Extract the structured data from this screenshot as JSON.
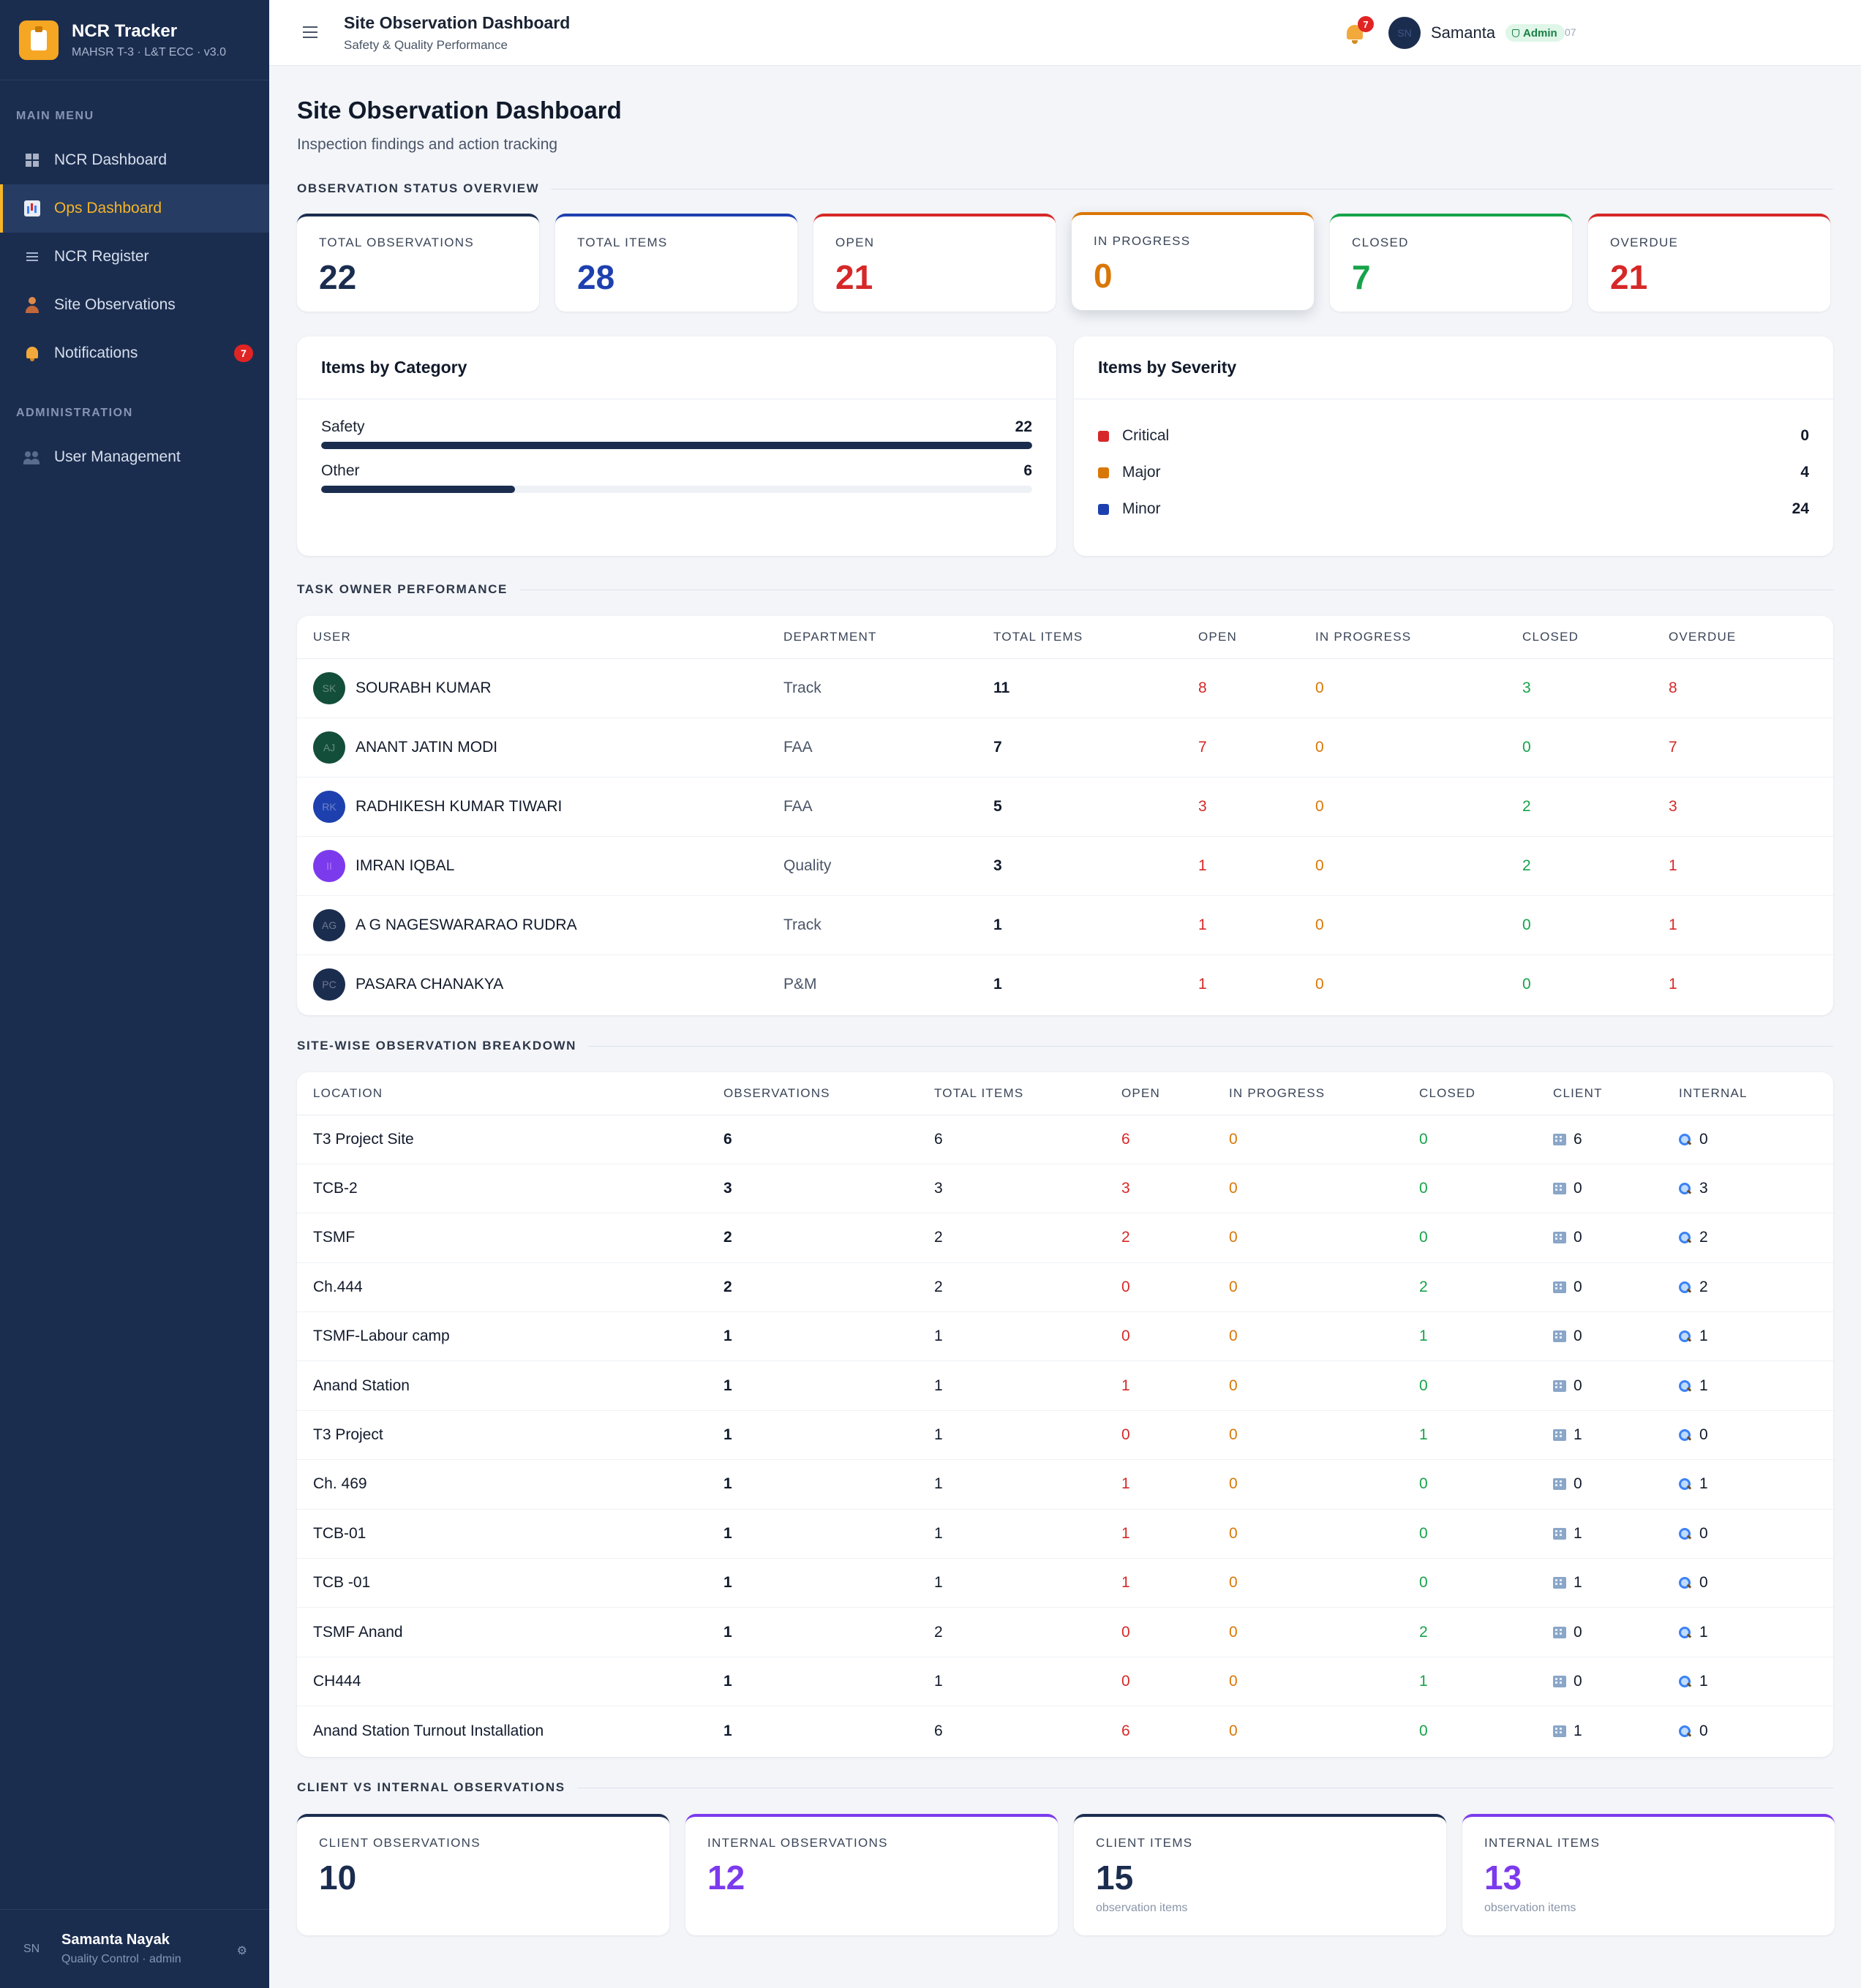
{
  "brand": {
    "title": "NCR Tracker",
    "subtitle": "MAHSR T-3 · L&T ECC · v3.0"
  },
  "sidebar": {
    "main_menu_label": "MAIN MENU",
    "items": [
      {
        "label": "NCR Dashboard",
        "icon": "grid-icon"
      },
      {
        "label": "Ops Dashboard",
        "icon": "bar-chart-icon",
        "active": true
      },
      {
        "label": "NCR Register",
        "icon": "list-icon"
      },
      {
        "label": "Site Observations",
        "icon": "person-icon"
      },
      {
        "label": "Notifications",
        "icon": "bell-icon",
        "badge": "7"
      }
    ],
    "admin_label": "ADMINISTRATION",
    "admin_items": [
      {
        "label": "User Management",
        "icon": "users-icon"
      }
    ],
    "user": {
      "initials": "SN",
      "name": "Samanta Nayak",
      "role": "Quality Control · admin"
    }
  },
  "header": {
    "title": "Site Observation Dashboard",
    "subtitle": "Safety & Quality Performance",
    "version": "v2026.05.02.07",
    "notification_count": "7",
    "user_initials": "SN",
    "user_name": "Samanta",
    "role_badge": "Admin"
  },
  "page": {
    "title": "Site Observation Dashboard",
    "subtitle": "Inspection findings and action tracking"
  },
  "status_overview": {
    "label": "OBSERVATION STATUS OVERVIEW",
    "cards": [
      {
        "label": "TOTAL OBSERVATIONS",
        "value": "22",
        "color": "#1b2d4f"
      },
      {
        "label": "TOTAL ITEMS",
        "value": "28",
        "color": "#1e40af"
      },
      {
        "label": "OPEN",
        "value": "21",
        "color": "#d62828"
      },
      {
        "label": "IN PROGRESS",
        "value": "0",
        "color": "#d97706"
      },
      {
        "label": "CLOSED",
        "value": "7",
        "color": "#16a34a"
      },
      {
        "label": "OVERDUE",
        "value": "21",
        "color": "#d62828"
      }
    ]
  },
  "category": {
    "title": "Items by Category",
    "max": 22,
    "rows": [
      {
        "label": "Safety",
        "value": 22
      },
      {
        "label": "Other",
        "value": 6
      }
    ]
  },
  "severity": {
    "title": "Items by Severity",
    "rows": [
      {
        "label": "Critical",
        "value": "0",
        "color": "#d62828"
      },
      {
        "label": "Major",
        "value": "4",
        "color": "#d97706"
      },
      {
        "label": "Minor",
        "value": "24",
        "color": "#1e40af"
      }
    ]
  },
  "task_owner": {
    "label": "TASK OWNER PERFORMANCE",
    "columns": [
      "USER",
      "DEPARTMENT",
      "TOTAL ITEMS",
      "OPEN",
      "IN PROGRESS",
      "CLOSED",
      "OVERDUE"
    ],
    "rows": [
      {
        "initials": "SK",
        "avatar_color": "#134e3a",
        "name": "SOURABH KUMAR",
        "department": "Track",
        "total": "11",
        "open": "8",
        "in_progress": "0",
        "closed": "3",
        "overdue": "8"
      },
      {
        "initials": "AJ",
        "avatar_color": "#134e3a",
        "name": "ANANT JATIN MODI",
        "department": "FAA",
        "total": "7",
        "open": "7",
        "in_progress": "0",
        "closed": "0",
        "overdue": "7"
      },
      {
        "initials": "RK",
        "avatar_color": "#1e40af",
        "name": "RADHIKESH KUMAR TIWARI",
        "department": "FAA",
        "total": "5",
        "open": "3",
        "in_progress": "0",
        "closed": "2",
        "overdue": "3"
      },
      {
        "initials": "II",
        "avatar_color": "#7c3aed",
        "name": "IMRAN IQBAL",
        "department": "Quality",
        "total": "3",
        "open": "1",
        "in_progress": "0",
        "closed": "2",
        "overdue": "1"
      },
      {
        "initials": "AG",
        "avatar_color": "#1b2d4f",
        "name": "A G NAGESWARARAO RUDRA",
        "department": "Track",
        "total": "1",
        "open": "1",
        "in_progress": "0",
        "closed": "0",
        "overdue": "1"
      },
      {
        "initials": "PC",
        "avatar_color": "#1b2d4f",
        "name": "PASARA CHANAKYA",
        "department": "P&M",
        "total": "1",
        "open": "1",
        "in_progress": "0",
        "closed": "0",
        "overdue": "1"
      }
    ]
  },
  "site_breakdown": {
    "label": "SITE-WISE OBSERVATION BREAKDOWN",
    "columns": [
      "LOCATION",
      "OBSERVATIONS",
      "TOTAL ITEMS",
      "OPEN",
      "IN PROGRESS",
      "CLOSED",
      "CLIENT",
      "INTERNAL"
    ],
    "rows": [
      {
        "location": "T3 Project Site",
        "observations": "6",
        "total": "6",
        "open": "6",
        "in_progress": "0",
        "closed": "0",
        "client": "6",
        "internal": "0"
      },
      {
        "location": "TCB-2",
        "observations": "3",
        "total": "3",
        "open": "3",
        "in_progress": "0",
        "closed": "0",
        "client": "0",
        "internal": "3"
      },
      {
        "location": "TSMF",
        "observations": "2",
        "total": "2",
        "open": "2",
        "in_progress": "0",
        "closed": "0",
        "client": "0",
        "internal": "2"
      },
      {
        "location": "Ch.444",
        "observations": "2",
        "total": "2",
        "open": "0",
        "in_progress": "0",
        "closed": "2",
        "client": "0",
        "internal": "2"
      },
      {
        "location": "TSMF-Labour camp",
        "observations": "1",
        "total": "1",
        "open": "0",
        "in_progress": "0",
        "closed": "1",
        "client": "0",
        "internal": "1"
      },
      {
        "location": "Anand Station",
        "observations": "1",
        "total": "1",
        "open": "1",
        "in_progress": "0",
        "closed": "0",
        "client": "0",
        "internal": "1"
      },
      {
        "location": "T3 Project",
        "observations": "1",
        "total": "1",
        "open": "0",
        "in_progress": "0",
        "closed": "1",
        "client": "1",
        "internal": "0"
      },
      {
        "location": "Ch. 469",
        "observations": "1",
        "total": "1",
        "open": "1",
        "in_progress": "0",
        "closed": "0",
        "client": "0",
        "internal": "1"
      },
      {
        "location": "TCB-01",
        "observations": "1",
        "total": "1",
        "open": "1",
        "in_progress": "0",
        "closed": "0",
        "client": "1",
        "internal": "0"
      },
      {
        "location": "TCB -01",
        "observations": "1",
        "total": "1",
        "open": "1",
        "in_progress": "0",
        "closed": "0",
        "client": "1",
        "internal": "0"
      },
      {
        "location": "TSMF Anand",
        "observations": "1",
        "total": "2",
        "open": "0",
        "in_progress": "0",
        "closed": "2",
        "client": "0",
        "internal": "1"
      },
      {
        "location": "CH444",
        "observations": "1",
        "total": "1",
        "open": "0",
        "in_progress": "0",
        "closed": "1",
        "client": "0",
        "internal": "1"
      },
      {
        "location": "Anand Station Turnout Installation",
        "observations": "1",
        "total": "6",
        "open": "6",
        "in_progress": "0",
        "closed": "0",
        "client": "1",
        "internal": "0"
      }
    ]
  },
  "client_internal": {
    "label": "CLIENT VS INTERNAL OBSERVATIONS",
    "cards": [
      {
        "label": "CLIENT OBSERVATIONS",
        "value": "10",
        "note": "",
        "color": "#1b2d4f"
      },
      {
        "label": "INTERNAL OBSERVATIONS",
        "value": "12",
        "note": "",
        "color": "#7c3aed"
      },
      {
        "label": "CLIENT ITEMS",
        "value": "15",
        "note": "observation items",
        "color": "#1b2d4f"
      },
      {
        "label": "INTERNAL ITEMS",
        "value": "13",
        "note": "observation items",
        "color": "#7c3aed"
      }
    ]
  }
}
